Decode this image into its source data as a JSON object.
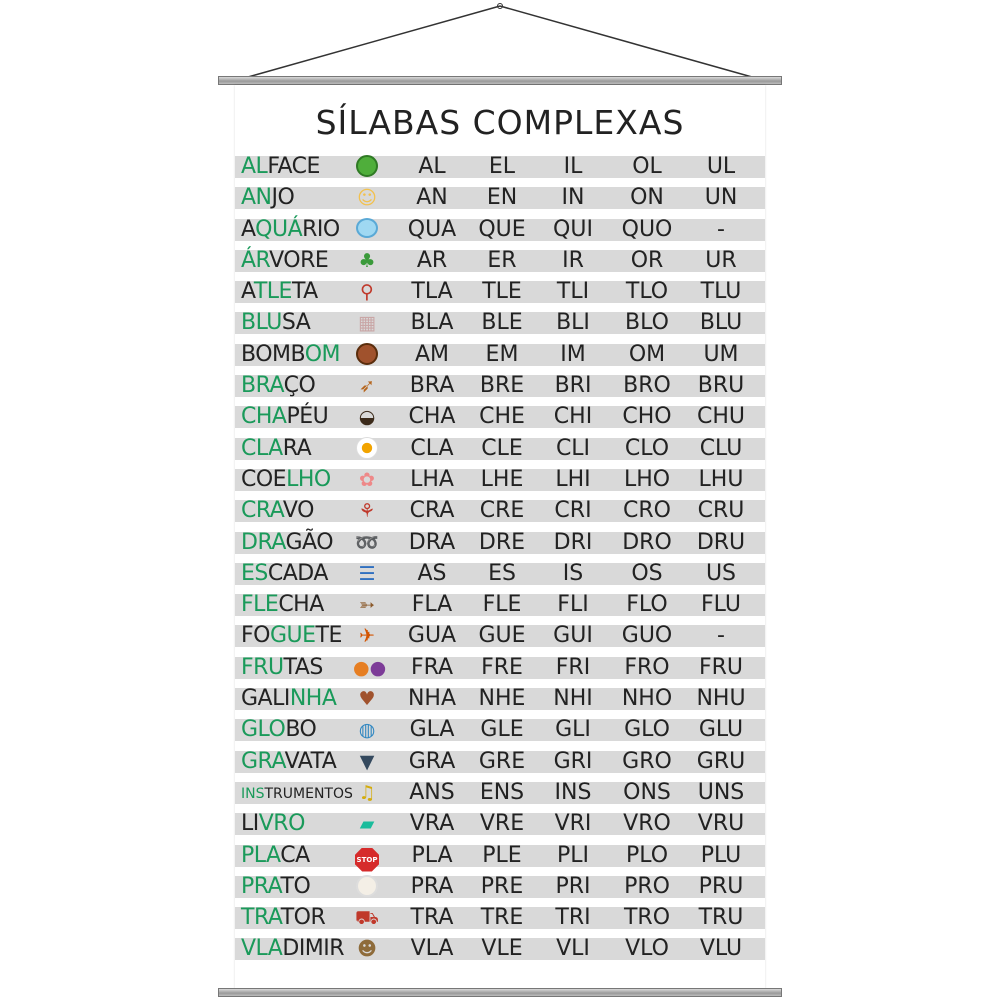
{
  "title": "SÍLABAS COMPLEXAS",
  "rows": [
    {
      "word_hl": "AL",
      "word_rest": "FACE",
      "icon": "lettuce-icon",
      "syllables": [
        "AL",
        "EL",
        "IL",
        "OL",
        "UL"
      ]
    },
    {
      "word_hl": "AN",
      "word_rest": "JO",
      "icon": "angel-icon",
      "syllables": [
        "AN",
        "EN",
        "IN",
        "ON",
        "UN"
      ]
    },
    {
      "word_pre": "A",
      "word_hl": "QUÁ",
      "word_rest": "RIO",
      "icon": "aquarium-icon",
      "syllables": [
        "QUA",
        "QUE",
        "QUI",
        "QUO",
        "-"
      ]
    },
    {
      "word_hl": "ÁR",
      "word_rest": "VORE",
      "icon": "tree-icon",
      "syllables": [
        "AR",
        "ER",
        "IR",
        "OR",
        "UR"
      ]
    },
    {
      "word_pre": "A",
      "word_hl": "TLE",
      "word_rest": "TA",
      "icon": "athlete-icon",
      "syllables": [
        "TLA",
        "TLE",
        "TLI",
        "TLO",
        "TLU"
      ]
    },
    {
      "word_hl": "BLU",
      "word_rest": "SA",
      "icon": "shirt-icon",
      "syllables": [
        "BLA",
        "BLE",
        "BLI",
        "BLO",
        "BLU"
      ]
    },
    {
      "word_pre": "BOMB",
      "word_hl": "OM",
      "word_rest": "",
      "icon": "cookie-icon",
      "syllables": [
        "AM",
        "EM",
        "IM",
        "OM",
        "UM"
      ]
    },
    {
      "word_hl": "BRA",
      "word_rest": "ÇO",
      "icon": "arm-icon",
      "syllables": [
        "BRA",
        "BRE",
        "BRI",
        "BRO",
        "BRU"
      ]
    },
    {
      "word_hl": "CHA",
      "word_rest": "PÉU",
      "icon": "hat-icon",
      "syllables": [
        "CHA",
        "CHE",
        "CHI",
        "CHO",
        "CHU"
      ]
    },
    {
      "word_hl": "CLA",
      "word_rest": "RA",
      "icon": "egg-icon",
      "syllables": [
        "CLA",
        "CLE",
        "CLI",
        "CLO",
        "CLU"
      ]
    },
    {
      "word_pre": "COE",
      "word_hl": "LHO",
      "word_rest": "",
      "icon": "rabbit-icon",
      "syllables": [
        "LHA",
        "LHE",
        "LHI",
        "LHO",
        "LHU"
      ]
    },
    {
      "word_hl": "CRA",
      "word_rest": "VO",
      "icon": "carnation-icon",
      "syllables": [
        "CRA",
        "CRE",
        "CRI",
        "CRO",
        "CRU"
      ]
    },
    {
      "word_hl": "DRA",
      "word_rest": "GÃO",
      "icon": "dragon-icon",
      "syllables": [
        "DRA",
        "DRE",
        "DRI",
        "DRO",
        "DRU"
      ]
    },
    {
      "word_hl": "ES",
      "word_rest": "CADA",
      "icon": "ladder-icon",
      "syllables": [
        "AS",
        "ES",
        "IS",
        "OS",
        "US"
      ]
    },
    {
      "word_hl": "FLE",
      "word_rest": "CHA",
      "icon": "arrow-icon",
      "syllables": [
        "FLA",
        "FLE",
        "FLI",
        "FLO",
        "FLU"
      ]
    },
    {
      "word_pre": "FO",
      "word_hl": "GUE",
      "word_rest": "TE",
      "icon": "rocket-icon",
      "syllables": [
        "GUA",
        "GUE",
        "GUI",
        "GUO",
        "-"
      ]
    },
    {
      "word_hl": "FRU",
      "word_rest": "TAS",
      "icon": "fruits-icon",
      "syllables": [
        "FRA",
        "FRE",
        "FRI",
        "FRO",
        "FRU"
      ]
    },
    {
      "word_pre": "GALI",
      "word_hl": "NHA",
      "word_rest": "",
      "icon": "hen-icon",
      "syllables": [
        "NHA",
        "NHE",
        "NHI",
        "NHO",
        "NHU"
      ]
    },
    {
      "word_hl": "GLO",
      "word_rest": "BO",
      "icon": "globe-icon",
      "syllables": [
        "GLA",
        "GLE",
        "GLI",
        "GLO",
        "GLU"
      ]
    },
    {
      "word_hl": "GRA",
      "word_rest": "VATA",
      "icon": "tie-icon",
      "syllables": [
        "GRA",
        "GRE",
        "GRI",
        "GRO",
        "GRU"
      ]
    },
    {
      "word_hl": "INS",
      "word_rest": "TRUMENTOS",
      "icon": "instruments-icon",
      "small": true,
      "syllables": [
        "ANS",
        "ENS",
        "INS",
        "ONS",
        "UNS"
      ]
    },
    {
      "word_pre": "LI",
      "word_hl": "VRO",
      "word_rest": "",
      "icon": "book-icon",
      "syllables": [
        "VRA",
        "VRE",
        "VRI",
        "VRO",
        "VRU"
      ]
    },
    {
      "word_hl": "PLA",
      "word_rest": "CA",
      "icon": "stop-sign-icon",
      "stop_text": "STOP",
      "syllables": [
        "PLA",
        "PLE",
        "PLI",
        "PLO",
        "PLU"
      ]
    },
    {
      "word_hl": "PRA",
      "word_rest": "TO",
      "icon": "plate-icon",
      "syllables": [
        "PRA",
        "PRE",
        "PRI",
        "PRO",
        "PRU"
      ]
    },
    {
      "word_hl": "TRA",
      "word_rest": "TOR",
      "icon": "tractor-icon",
      "syllables": [
        "TRA",
        "TRE",
        "TRI",
        "TRO",
        "TRU"
      ]
    },
    {
      "word_hl": "VLA",
      "word_rest": "DIMIR",
      "icon": "boy-icon",
      "syllables": [
        "VLA",
        "VLE",
        "VLI",
        "VLO",
        "VLU"
      ]
    }
  ],
  "colors": {
    "highlight": "#1a9a5a",
    "band": "#d9d9d9",
    "text": "#222222"
  }
}
